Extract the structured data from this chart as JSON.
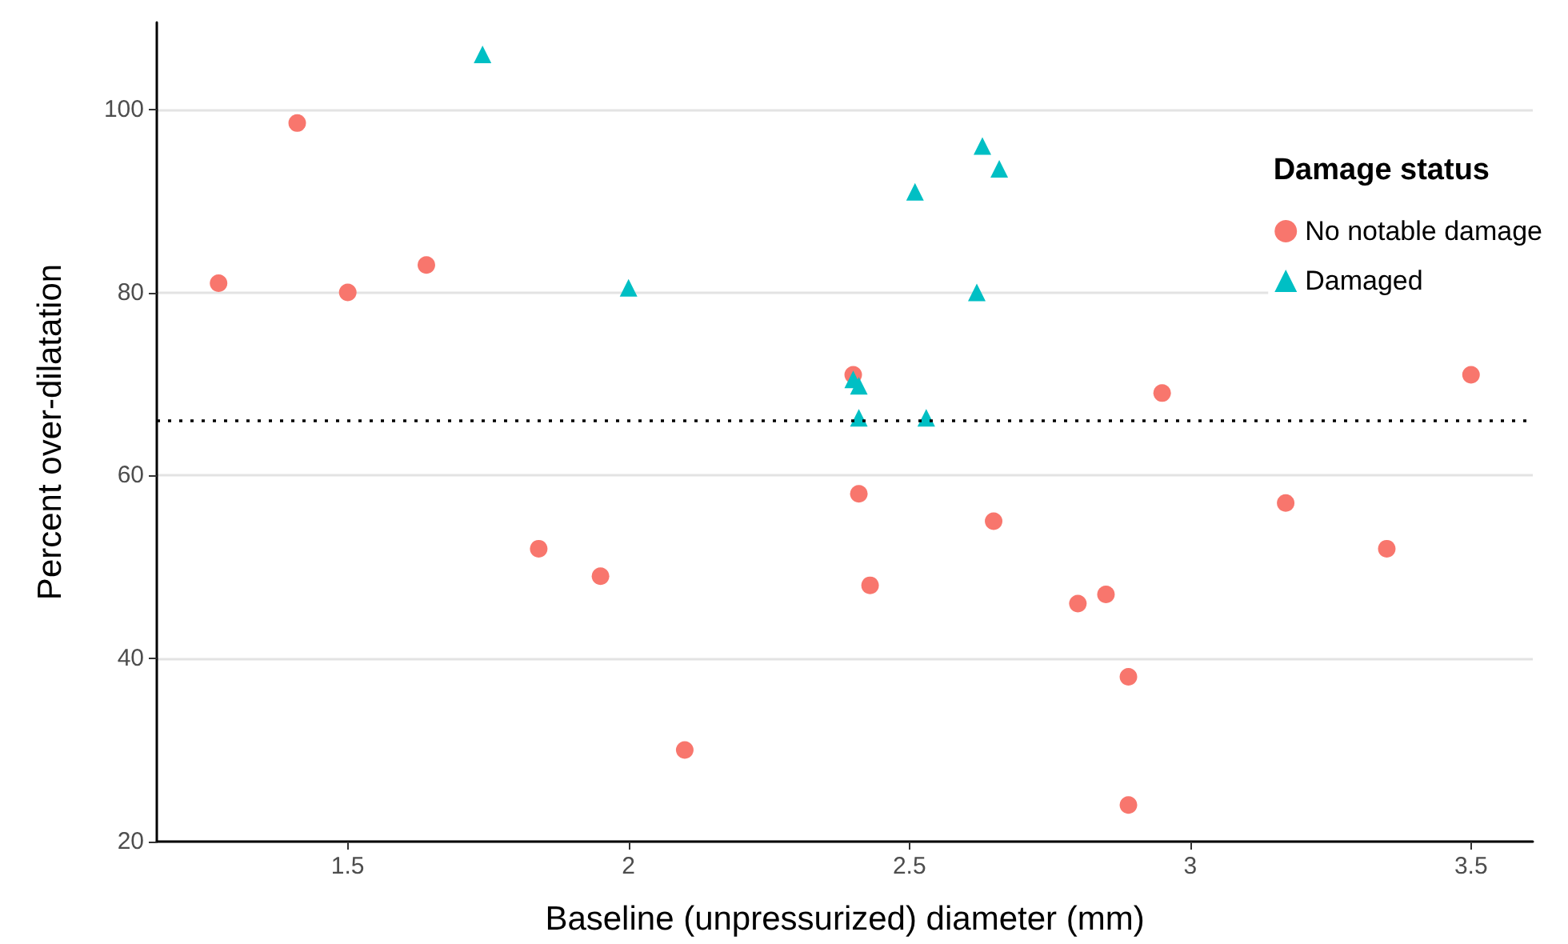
{
  "chart_data": {
    "type": "scatter",
    "xlabel": "Baseline (unpressurized) diameter (mm)",
    "ylabel": "Percent over-dilatation",
    "legend_title": "Damage status",
    "xlim": [
      1.16,
      3.61
    ],
    "xticks": [
      1.5,
      2.0,
      2.5,
      3.0,
      3.5
    ],
    "ylim": [
      20,
      109.5
    ],
    "yticks": [
      20,
      40,
      60,
      80,
      100
    ],
    "grid": "y",
    "legend": "top right",
    "ref_lines": [
      {
        "axis": "y",
        "value": 66,
        "line_style": "dotted",
        "color": "#000000"
      }
    ],
    "series": [
      {
        "name": "No notable damage",
        "color": "#f8766d",
        "marker": "circle",
        "x": [
          1.27,
          1.41,
          1.5,
          1.64,
          1.84,
          1.95,
          2.0,
          2.1,
          2.4,
          2.41,
          2.43,
          2.65,
          2.8,
          2.85,
          2.89,
          2.89,
          2.95,
          3.17,
          3.35,
          3.5
        ],
        "values": [
          81,
          98.5,
          80,
          83,
          52,
          49,
          null,
          30,
          71,
          58,
          48,
          55,
          46,
          47,
          38,
          24,
          69,
          57,
          52,
          71
        ]
      },
      {
        "name": "Damaged",
        "color": "#00bfc4",
        "marker": "triangle",
        "x": [
          1.74,
          2.0,
          2.4,
          2.41,
          2.41,
          2.51,
          2.53,
          2.63,
          2.66,
          2.62
        ],
        "values": [
          106,
          80.5,
          70.5,
          69.8,
          66.3,
          91,
          66.3,
          96,
          93.5,
          80
        ]
      }
    ]
  }
}
